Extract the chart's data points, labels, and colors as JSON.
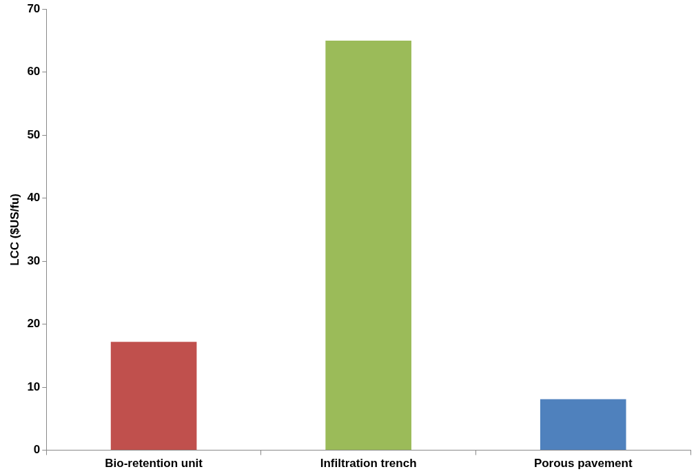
{
  "chart_data": {
    "type": "bar",
    "ylabel": "LCC ($US/fu)",
    "categories": [
      "Bio-retention unit",
      "Infiltration trench",
      "Porous pavement"
    ],
    "values": [
      17.2,
      65.0,
      8.1
    ],
    "colors": [
      "#c0504d",
      "#9bbb59",
      "#4f81bd"
    ],
    "ylim": [
      0,
      70
    ],
    "yticks": [
      0,
      10,
      20,
      30,
      40,
      50,
      60,
      70
    ]
  }
}
